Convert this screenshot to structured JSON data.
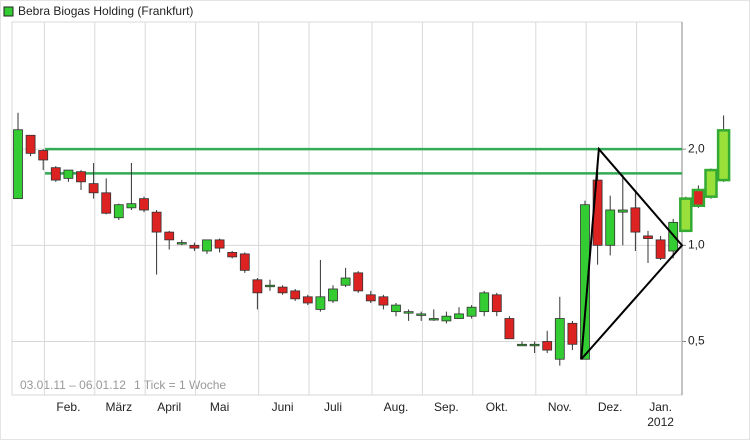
{
  "chart_data": {
    "type": "candlestick",
    "log_scale": true,
    "grid": true,
    "ylim": [
      0.34,
      5.0
    ],
    "yticks": [
      {
        "value": 0.5,
        "label": "0,5"
      },
      {
        "value": 1,
        "label": "1,0"
      },
      {
        "value": 2,
        "label": "2,0"
      }
    ],
    "categories": [
      null,
      null,
      null,
      null,
      "Feb.",
      null,
      null,
      null,
      "März",
      null,
      null,
      null,
      "April",
      null,
      null,
      null,
      "Mai",
      null,
      null,
      null,
      null,
      "Juni",
      null,
      null,
      null,
      "Juli",
      null,
      null,
      null,
      null,
      "Aug.",
      null,
      null,
      null,
      "Sep.",
      null,
      null,
      null,
      "Okt.",
      null,
      null,
      null,
      null,
      "Nov.",
      null,
      null,
      null,
      "Dez.",
      null,
      null,
      null,
      "Jan.",
      null,
      null,
      null,
      null,
      null
    ],
    "year_label": "2012",
    "period": "03.01.11 – 06.01.12",
    "tick_note": "1 Tick = 1 Woche",
    "up_color": "#33cc33",
    "down_color": "#dd2222",
    "highlight_last": 4,
    "highlight_color": "#99e03a",
    "highlight_border": "#33aa33",
    "series": [
      {
        "name": "Bebra Biogas Holding (Frankfurt)",
        "color": "#33cc33",
        "open": [
          1.4,
          2.21,
          1.98,
          1.75,
          1.62,
          1.7,
          1.56,
          1.46,
          1.22,
          1.31,
          1.4,
          1.27,
          1.1,
          1.02,
          1.0,
          0.96,
          1.04,
          0.95,
          0.94,
          0.78,
          0.75,
          0.74,
          0.72,
          0.69,
          0.63,
          0.67,
          0.75,
          0.82,
          0.7,
          0.69,
          0.62,
          0.62,
          0.61,
          0.59,
          0.58,
          0.59,
          0.6,
          0.62,
          0.7,
          0.59,
          0.49,
          0.49,
          0.5,
          0.44,
          0.57,
          0.44,
          1.6,
          1.0,
          1.27,
          1.31,
          1.07,
          1.04,
          0.96,
          1.11,
          1.49,
          1.42,
          1.6
        ],
        "high": [
          2.6,
          2.21,
          2.0,
          1.77,
          1.72,
          1.72,
          1.81,
          1.62,
          1.35,
          1.81,
          1.42,
          1.29,
          1.11,
          1.04,
          1.02,
          1.04,
          1.05,
          0.96,
          0.95,
          0.79,
          0.78,
          0.75,
          0.73,
          0.7,
          0.9,
          0.75,
          0.85,
          0.83,
          0.72,
          0.7,
          0.66,
          0.63,
          0.62,
          0.63,
          0.62,
          0.64,
          0.65,
          0.72,
          0.71,
          0.6,
          0.5,
          0.5,
          0.54,
          0.69,
          0.58,
          1.38,
          1.78,
          1.43,
          1.66,
          1.49,
          1.11,
          1.07,
          1.21,
          1.42,
          1.54,
          1.74,
          2.55
        ],
        "low": [
          1.4,
          1.9,
          1.72,
          1.58,
          1.58,
          1.49,
          1.4,
          1.25,
          1.2,
          1.29,
          1.27,
          0.81,
          0.97,
          1.0,
          0.96,
          0.94,
          0.95,
          0.91,
          0.82,
          0.63,
          0.72,
          0.7,
          0.67,
          0.65,
          0.62,
          0.66,
          0.74,
          0.71,
          0.66,
          0.63,
          0.6,
          0.58,
          0.58,
          0.58,
          0.57,
          0.59,
          0.59,
          0.6,
          0.6,
          0.51,
          0.49,
          0.46,
          0.46,
          0.42,
          0.47,
          0.44,
          0.87,
          0.93,
          1.0,
          0.96,
          0.88,
          0.9,
          0.91,
          1.1,
          1.31,
          1.4,
          1.58
        ],
        "close": [
          2.3,
          1.94,
          1.85,
          1.6,
          1.72,
          1.58,
          1.46,
          1.26,
          1.34,
          1.35,
          1.29,
          1.1,
          1.04,
          1.02,
          0.98,
          1.04,
          0.98,
          0.92,
          0.835,
          0.71,
          0.75,
          0.71,
          0.68,
          0.66,
          0.69,
          0.73,
          0.79,
          0.72,
          0.67,
          0.65,
          0.65,
          0.62,
          0.61,
          0.59,
          0.6,
          0.61,
          0.64,
          0.71,
          0.62,
          0.51,
          0.49,
          0.49,
          0.47,
          0.59,
          0.49,
          1.34,
          1.0,
          1.29,
          1.29,
          1.1,
          1.05,
          0.91,
          1.18,
          1.4,
          1.33,
          1.72,
          2.29
        ]
      }
    ],
    "hlines": [
      {
        "value": 2.0,
        "color": "#33aa55"
      },
      {
        "value": 1.68,
        "color": "#33aa55"
      }
    ],
    "trend_lines": [
      {
        "color": "#000000",
        "points": [
          {
            "category": 44.7,
            "value": 0.44
          },
          {
            "category": 46.1,
            "value": 2.0
          },
          {
            "category": 52.7,
            "value": 1.0
          },
          {
            "category": 44.7,
            "value": 0.44
          }
        ]
      }
    ]
  }
}
